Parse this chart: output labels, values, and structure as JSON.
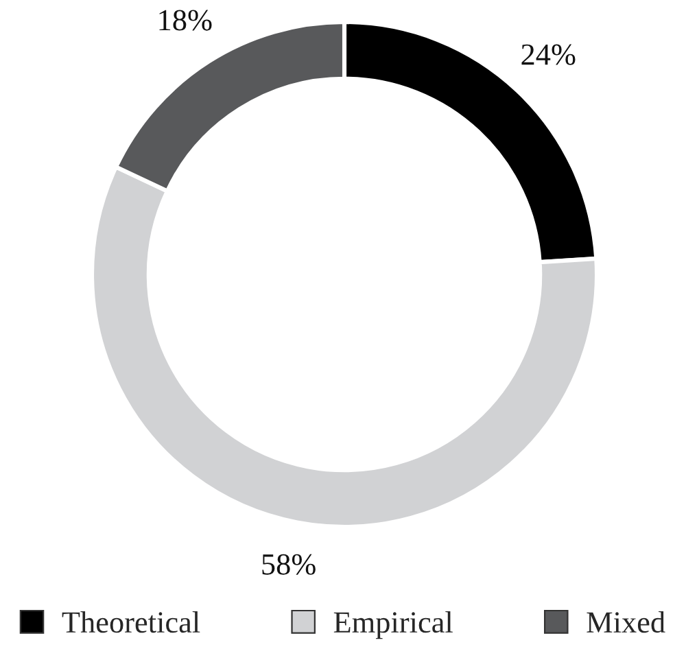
{
  "chart_data": {
    "type": "donut",
    "categories": [
      "Theoretical",
      "Empirical",
      "Mixed"
    ],
    "values": [
      24,
      58,
      18
    ],
    "colors": [
      "#000000",
      "#d1d2d4",
      "#58595b"
    ],
    "value_labels": [
      "24%",
      "58%",
      "18%"
    ],
    "legend": "bottom"
  }
}
